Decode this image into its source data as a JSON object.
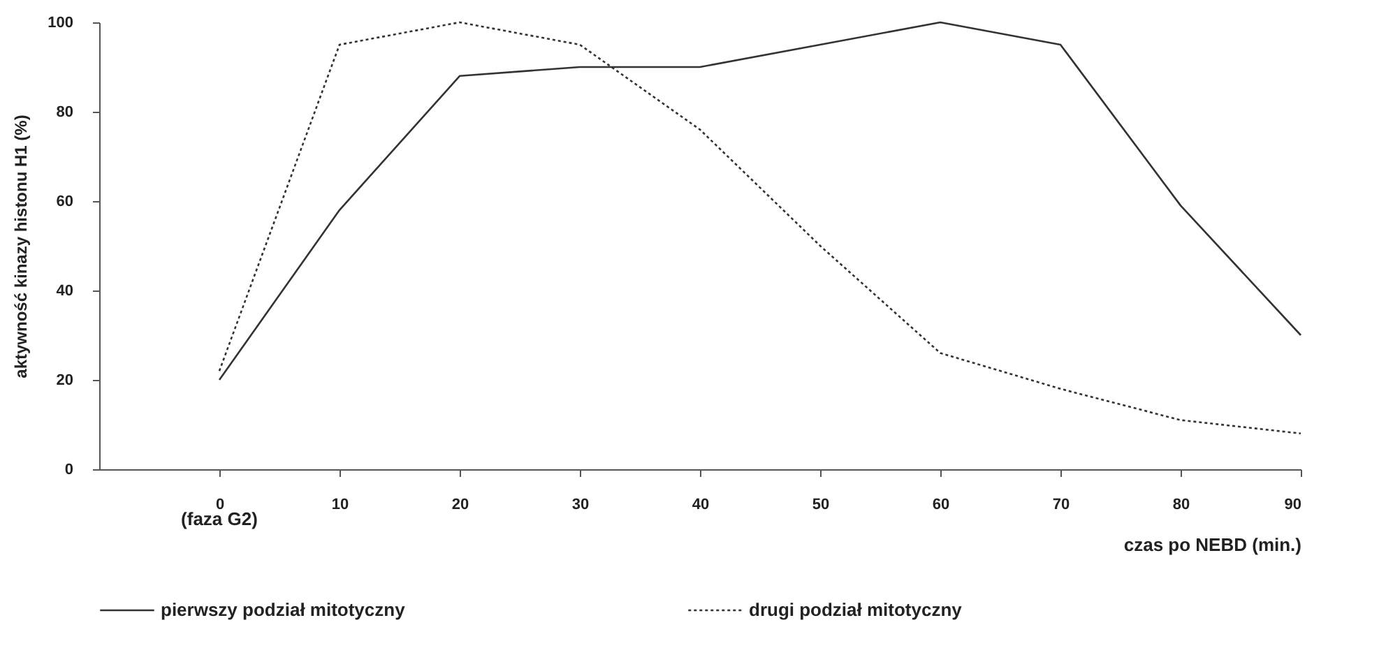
{
  "chart_data": {
    "type": "line",
    "xlabel": "czas po NEBD (min.)",
    "ylabel": "aktywność kinazy histonu H1 (%)",
    "x": [
      0,
      10,
      20,
      30,
      40,
      50,
      60,
      70,
      80,
      90
    ],
    "xlim": [
      -10,
      90
    ],
    "xticks": [
      0,
      10,
      20,
      30,
      40,
      50,
      60,
      70,
      80,
      90
    ],
    "ylim": [
      0,
      100
    ],
    "yticks": [
      0,
      20,
      40,
      60,
      80,
      100
    ],
    "grid": false,
    "legend": "bottom",
    "marker": "none",
    "annotations": [
      "(faza G2)"
    ],
    "series": [
      {
        "name": "pierwszy podział mitotyczny",
        "color": "#333333",
        "line_style": "solid",
        "values": [
          20,
          58,
          88,
          90,
          90,
          95,
          100,
          95,
          59,
          30
        ]
      },
      {
        "name": "drugi podział mitotyczny",
        "color": "#333333",
        "line_style": "dotted",
        "values": [
          22,
          95,
          100,
          95,
          76,
          50,
          26,
          18,
          11,
          8
        ]
      }
    ]
  }
}
